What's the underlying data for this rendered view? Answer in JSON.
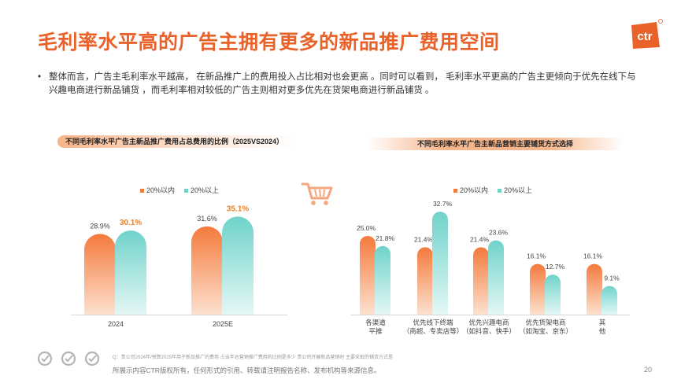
{
  "title": "毛利率水平高的广告主拥有更多的新品推广费用空间",
  "logo_text": "ctr",
  "bullet": "整体而言，广告主毛利率水平越高， 在新品推广上的费用投入占比相对也会更高 。同时可以看到， 毛利率水平更高的广告主更倾向于优先在线下与兴趣电商进行新品铺货 ，而毛利率相对较低的广告主则相对更多优先在货架电商进行新品铺货 。",
  "footer": {
    "source": "Q：贵公司2024年/预算2025年用于新品推广的费用  占当年总营销推广费用的比例是多少 贵公司开展新品营销时  主要采取的铺货方式是",
    "copyright": "所展示内容CTR版权所有，任何形式的引用、转载请注明报告名称、发布机构等来源信息。",
    "page": "20"
  },
  "colors": {
    "accent": "#e8622a",
    "series_low": "#f47a3c",
    "series_high": "#6fd3ca",
    "highlight_label": "#e8822e"
  },
  "chart_data": [
    {
      "type": "bar",
      "title": "不同毛利率水平广告主新品推广费用占总费用的比例（2025VS2024）",
      "categories": [
        "2024",
        "2025E"
      ],
      "series": [
        {
          "name": "20%以内",
          "values": [
            28.9,
            31.6
          ],
          "labels": [
            "28.9%",
            "31.6%"
          ]
        },
        {
          "name": "20%以上",
          "values": [
            30.1,
            35.1
          ],
          "labels": [
            "30.1%",
            "35.1%"
          ]
        }
      ],
      "legend": "top-center",
      "grid": false
    },
    {
      "type": "bar",
      "title": "不同毛利率水平广告主新品营销主要铺货方式选择",
      "categories": [
        "各渠道\n平推",
        "优先线下终端\n（商超、专卖店等）",
        "优先兴趣电商\n（如抖音、快手）",
        "优先货架电商\n（如淘宝、京东）",
        "其\n他"
      ],
      "series": [
        {
          "name": "20%以内",
          "values": [
            25.0,
            21.4,
            21.4,
            16.1,
            16.1
          ],
          "labels": [
            "25.0%",
            "21.4%",
            "21.4%",
            "16.1%",
            "16.1%"
          ]
        },
        {
          "name": "20%以上",
          "values": [
            21.8,
            32.7,
            23.6,
            12.7,
            9.1
          ],
          "labels": [
            "21.8%",
            "32.7%",
            "23.6%",
            "12.7%",
            "9.1%"
          ]
        }
      ],
      "legend": "top-center",
      "grid": false
    }
  ]
}
